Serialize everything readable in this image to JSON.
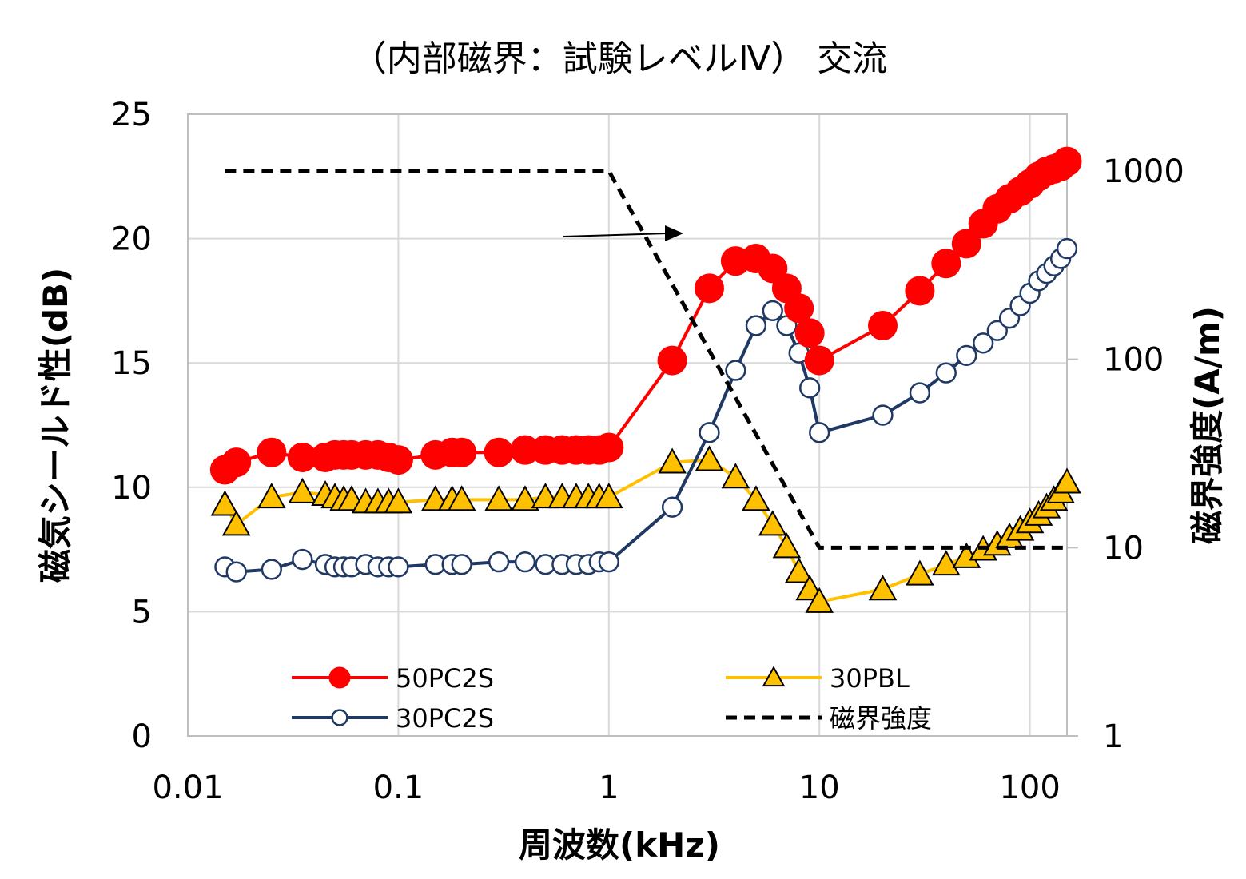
{
  "chart_data": {
    "type": "line",
    "title": "（内部磁界：試験レベルⅣ） 交流",
    "xlabel": "周波数(kHz)",
    "ylabel": "磁気シールド性(dB)",
    "y2label": "磁界強度(A/m)",
    "xscale": "log",
    "xlim": [
      0.01,
      150
    ],
    "ylim": [
      0,
      25
    ],
    "y2scale": "log",
    "y2lim": [
      1,
      2000
    ],
    "x_ticks": [
      0.01,
      0.1,
      1,
      10,
      100
    ],
    "x_tick_labels": [
      "0.01",
      "0.1",
      "1",
      "10",
      "100"
    ],
    "y_ticks": [
      0,
      5,
      10,
      15,
      20,
      25
    ],
    "y_tick_labels": [
      "0",
      "5",
      "10",
      "15",
      "20",
      "25"
    ],
    "y2_ticks": [
      1,
      10,
      100,
      1000
    ],
    "y2_tick_labels": [
      "1",
      "10",
      "100",
      "1000"
    ],
    "grid": true,
    "legend_position": "bottom-inside",
    "series": [
      {
        "name": "50PC2S",
        "axis": "left",
        "color": "#ff0000",
        "marker": "circle-filled",
        "x": [
          0.015,
          0.017,
          0.025,
          0.035,
          0.045,
          0.05,
          0.055,
          0.06,
          0.07,
          0.08,
          0.09,
          0.1,
          0.15,
          0.18,
          0.2,
          0.3,
          0.4,
          0.5,
          0.6,
          0.7,
          0.8,
          0.9,
          1,
          2,
          3,
          4,
          5,
          6,
          7,
          8,
          9,
          10,
          20,
          30,
          40,
          50,
          60,
          70,
          80,
          90,
          100,
          110,
          120,
          130,
          140,
          150
        ],
        "values": [
          10.7,
          11.0,
          11.4,
          11.2,
          11.2,
          11.3,
          11.3,
          11.3,
          11.3,
          11.3,
          11.2,
          11.1,
          11.3,
          11.4,
          11.4,
          11.4,
          11.5,
          11.5,
          11.5,
          11.5,
          11.5,
          11.5,
          11.6,
          15.1,
          18.0,
          19.1,
          19.2,
          18.8,
          18.0,
          17.2,
          16.2,
          15.1,
          16.5,
          17.9,
          19.0,
          19.8,
          20.6,
          21.2,
          21.6,
          21.9,
          22.2,
          22.5,
          22.7,
          22.8,
          22.9,
          23.1
        ]
      },
      {
        "name": "30PC2S",
        "axis": "left",
        "color": "#1f3864",
        "marker": "circle-open",
        "x": [
          0.015,
          0.017,
          0.025,
          0.035,
          0.045,
          0.05,
          0.055,
          0.06,
          0.07,
          0.08,
          0.09,
          0.1,
          0.15,
          0.18,
          0.2,
          0.3,
          0.4,
          0.5,
          0.6,
          0.7,
          0.8,
          0.9,
          1,
          2,
          3,
          4,
          5,
          6,
          7,
          8,
          9,
          10,
          20,
          30,
          40,
          50,
          60,
          70,
          80,
          90,
          100,
          110,
          120,
          130,
          140,
          150
        ],
        "values": [
          6.8,
          6.6,
          6.7,
          7.1,
          6.9,
          6.8,
          6.8,
          6.8,
          6.9,
          6.8,
          6.8,
          6.8,
          6.9,
          6.9,
          6.9,
          7.0,
          7.0,
          6.9,
          6.9,
          6.9,
          6.9,
          7.0,
          7.0,
          9.2,
          12.2,
          14.7,
          16.5,
          17.1,
          16.5,
          15.4,
          14.0,
          12.2,
          12.9,
          13.8,
          14.6,
          15.3,
          15.8,
          16.3,
          16.8,
          17.3,
          17.8,
          18.3,
          18.6,
          18.9,
          19.2,
          19.6
        ]
      },
      {
        "name": "30PBL",
        "axis": "left",
        "color": "#ffc000",
        "marker": "triangle",
        "x": [
          0.015,
          0.017,
          0.025,
          0.035,
          0.045,
          0.05,
          0.055,
          0.06,
          0.07,
          0.08,
          0.09,
          0.1,
          0.15,
          0.18,
          0.2,
          0.3,
          0.4,
          0.5,
          0.6,
          0.7,
          0.8,
          0.9,
          1,
          2,
          3,
          4,
          5,
          6,
          7,
          8,
          9,
          10,
          20,
          30,
          40,
          50,
          60,
          70,
          80,
          90,
          100,
          110,
          120,
          130,
          140,
          150
        ],
        "values": [
          9.3,
          8.5,
          9.6,
          9.8,
          9.7,
          9.6,
          9.5,
          9.5,
          9.4,
          9.4,
          9.4,
          9.4,
          9.5,
          9.5,
          9.5,
          9.5,
          9.5,
          9.6,
          9.6,
          9.6,
          9.6,
          9.6,
          9.6,
          11.0,
          11.1,
          10.4,
          9.5,
          8.5,
          7.6,
          6.6,
          5.9,
          5.4,
          5.9,
          6.5,
          6.9,
          7.2,
          7.5,
          7.7,
          8.0,
          8.3,
          8.6,
          8.9,
          9.2,
          9.5,
          9.8,
          10.2
        ]
      },
      {
        "name": "磁界強度",
        "axis": "right",
        "color": "#000000",
        "style": "dashed",
        "x": [
          0.015,
          1,
          10,
          150
        ],
        "values": [
          1000,
          1000,
          10,
          10
        ]
      }
    ],
    "annotations": [
      {
        "type": "arrow",
        "points_to": "right-axis"
      }
    ]
  }
}
